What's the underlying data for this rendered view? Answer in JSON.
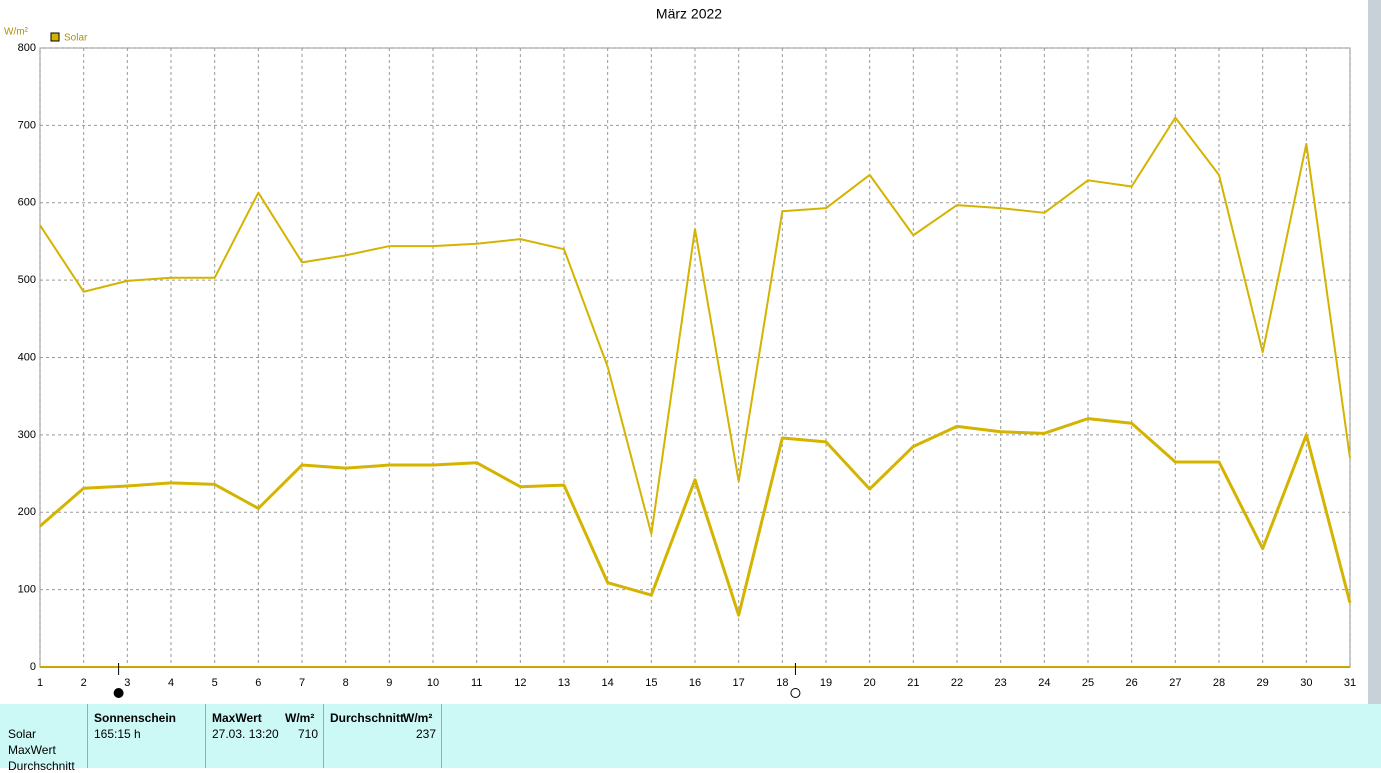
{
  "chart_data": {
    "type": "line",
    "title": "März 2022",
    "y_label": "W/m²",
    "x": [
      1,
      2,
      3,
      4,
      5,
      6,
      7,
      8,
      9,
      10,
      11,
      12,
      13,
      14,
      15,
      16,
      17,
      18,
      19,
      20,
      21,
      22,
      23,
      24,
      25,
      26,
      27,
      28,
      29,
      30,
      31
    ],
    "series": [
      {
        "name": "Solar",
        "color": "#d4b400",
        "line_width": 2,
        "values": [
          571,
          485,
          499,
          503,
          503,
          613,
          523,
          532,
          544,
          544,
          547,
          553,
          540,
          388,
          172,
          566,
          240,
          589,
          593,
          636,
          558,
          597,
          593,
          587,
          629,
          621,
          710,
          636,
          407,
          676,
          270
        ]
      },
      {
        "color": "#d4b400",
        "line_width": 3,
        "values": [
          182,
          231,
          234,
          238,
          236,
          205,
          261,
          257,
          261,
          261,
          264,
          233,
          235,
          109,
          93,
          242,
          67,
          296,
          291,
          230,
          285,
          311,
          304,
          302,
          321,
          315,
          265,
          265,
          153,
          300,
          83
        ]
      }
    ],
    "xlim": [
      1,
      31
    ],
    "xticks": [
      1,
      2,
      3,
      4,
      5,
      6,
      7,
      8,
      9,
      10,
      11,
      12,
      13,
      14,
      15,
      16,
      17,
      18,
      19,
      20,
      21,
      22,
      23,
      24,
      25,
      26,
      27,
      28,
      29,
      30,
      31
    ],
    "ylim": [
      0,
      800
    ],
    "yticks": [
      0,
      100,
      200,
      300,
      400,
      500,
      600,
      700,
      800
    ],
    "grid": true,
    "markers": [
      {
        "x": 2.8,
        "style": "filled"
      },
      {
        "x": 18.3,
        "style": "open"
      }
    ]
  },
  "panel": {
    "row_labels": [
      "Solar",
      "MaxWert",
      "Durchschnitt"
    ],
    "sunshine": {
      "header": "Sonnenschein",
      "value": "165:15 h"
    },
    "max": {
      "header": "MaxWert",
      "unit": "W/m²",
      "date": "27.03. 13:20",
      "value": 710
    },
    "avg": {
      "header": "Durchschnitt",
      "unit": "W/m²",
      "value": 237
    }
  }
}
